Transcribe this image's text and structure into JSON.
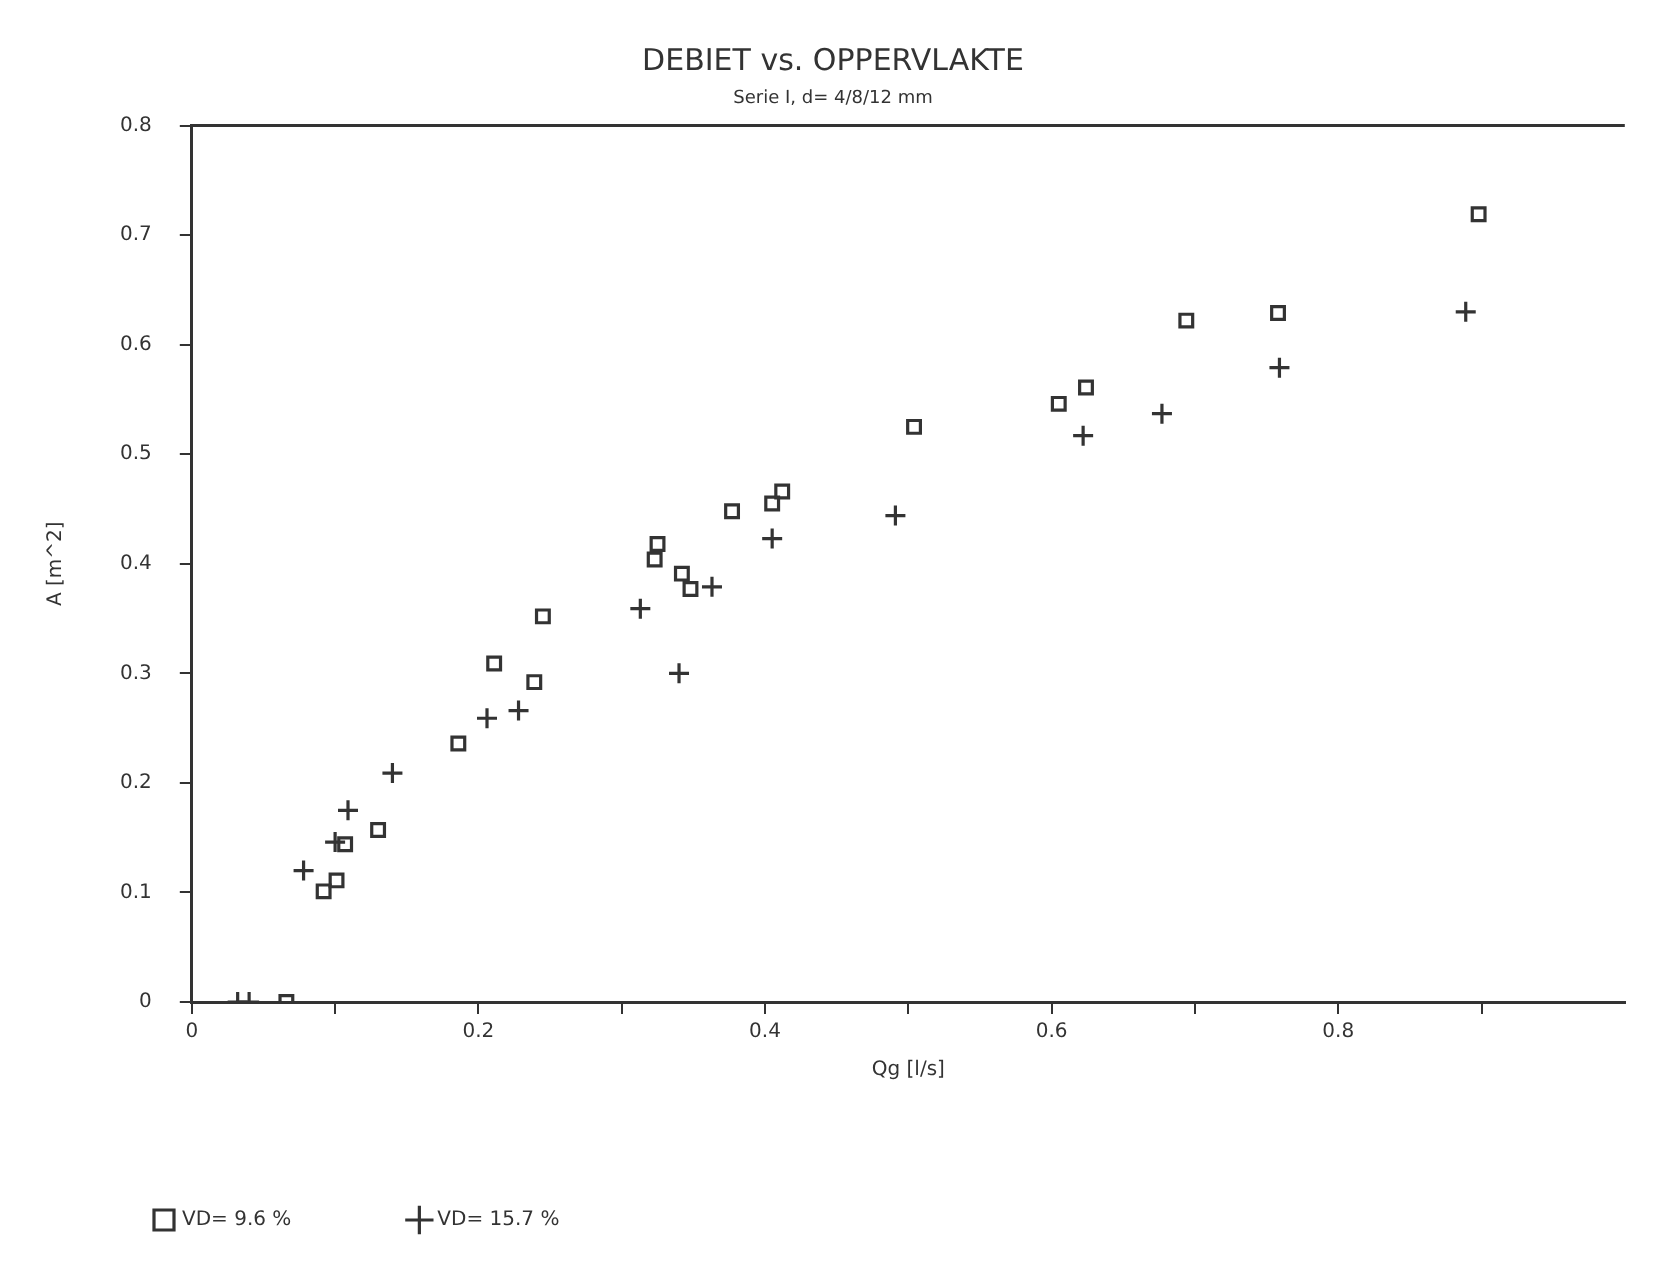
{
  "chart_data": {
    "type": "scatter",
    "title": "DEBIET vs. OPPERVLAKTE",
    "subtitle": "Serie I, d= 4/8/12 mm",
    "xlabel": "Qg [l/s]",
    "ylabel": "A [m^2]",
    "xlim": [
      0,
      1
    ],
    "xticks": [
      0,
      {
        "value": 0.1,
        "label": null
      },
      0.2,
      {
        "value": 0.3,
        "label": null
      },
      0.4,
      {
        "value": 0.5,
        "label": null
      },
      0.6,
      {
        "value": 0.7,
        "label": null
      },
      0.8,
      {
        "value": 0.9,
        "label": null
      }
    ],
    "ylim": [
      0,
      0.8
    ],
    "yticks": [
      0,
      0.1,
      0.2,
      0.3,
      0.4,
      0.5,
      0.6,
      0.7,
      0.8
    ],
    "grid": false,
    "legend": "bottom",
    "series": [
      {
        "name": "VD= 9.6 %",
        "color": "#333333",
        "marker": "square",
        "x": [
          0.066,
          0.092,
          0.101,
          0.107,
          0.13,
          0.186,
          0.211,
          0.239,
          0.245,
          0.323,
          0.325,
          0.342,
          0.348,
          0.377,
          0.405,
          0.412,
          0.504,
          0.605,
          0.624,
          0.694,
          0.758,
          0.898
        ],
        "values": [
          0,
          0.101,
          0.111,
          0.144,
          0.157,
          0.236,
          0.309,
          0.292,
          0.352,
          0.404,
          0.418,
          0.391,
          0.377,
          0.448,
          0.455,
          0.466,
          0.525,
          0.546,
          0.561,
          0.622,
          0.629,
          0.719
        ]
      },
      {
        "name": "VD= 15.7 %",
        "color": "#333333",
        "marker": "cross",
        "x": [
          0.032,
          0.04,
          0.078,
          0.1,
          0.109,
          0.14,
          0.206,
          0.228,
          0.313,
          0.34,
          0.363,
          0.405,
          0.491,
          0.622,
          0.677,
          0.759,
          0.889
        ],
        "values": [
          0,
          0,
          0.12,
          0.146,
          0.175,
          0.209,
          0.259,
          0.266,
          0.359,
          0.3,
          0.379,
          0.423,
          0.444,
          0.517,
          0.537,
          0.579,
          0.63
        ]
      }
    ]
  }
}
